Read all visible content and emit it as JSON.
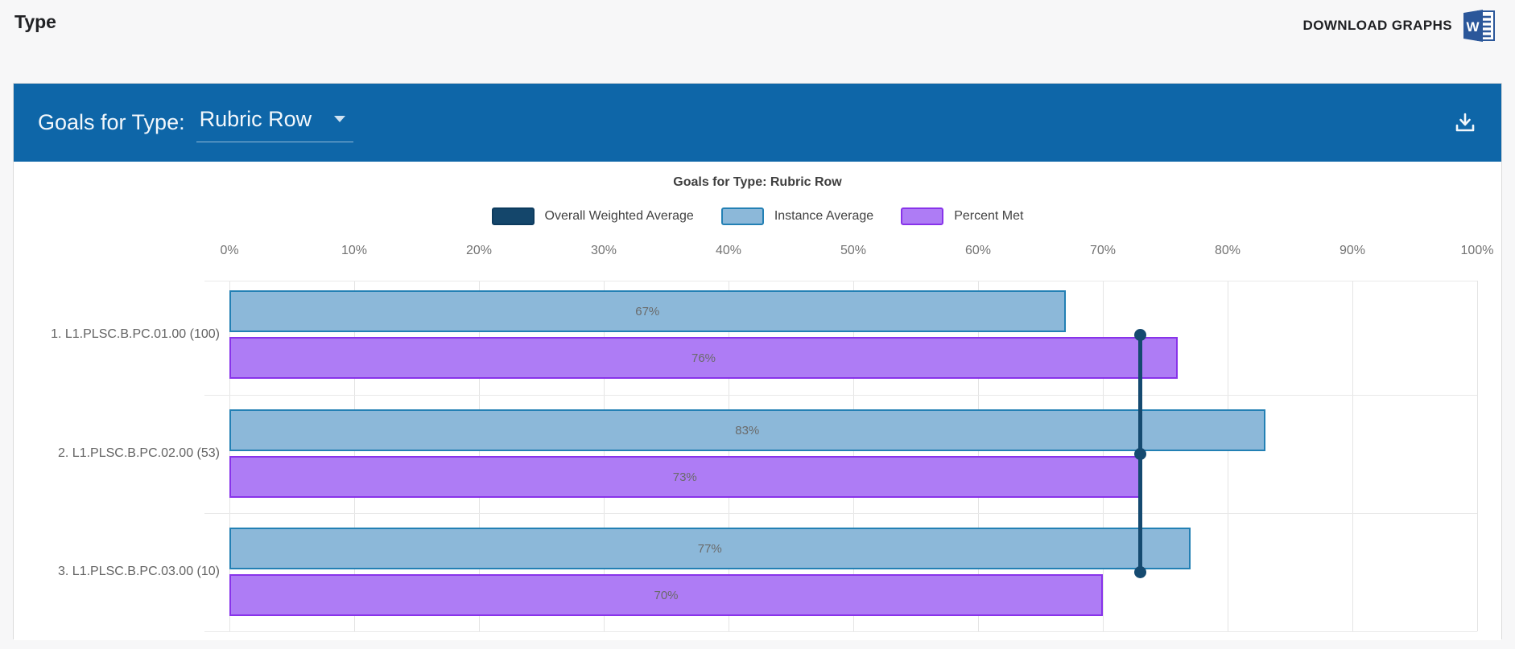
{
  "page": {
    "title": "Type"
  },
  "toolbar": {
    "download_label": "DOWNLOAD GRAPHS",
    "word_icon": "word-icon",
    "word_icon_color": "#2b579a"
  },
  "panel": {
    "header_label": "Goals for Type:",
    "selected_type": "Rubric Row",
    "download_icon": "download-icon",
    "header_color": "#0e66a8"
  },
  "chart_data": {
    "type": "bar",
    "orientation": "horizontal",
    "title": "Goals for Type: Rubric Row",
    "categories": [
      "1. L1.PLSC.B.PC.01.00 (100)",
      "2. L1.PLSC.B.PC.02.00 (53)",
      "3. L1.PLSC.B.PC.03.00 (10)"
    ],
    "series": [
      {
        "name": "Overall Weighted Average",
        "type": "line",
        "color": "#14466b",
        "border": "#0d3b5e",
        "values": [
          73,
          73,
          73
        ]
      },
      {
        "name": "Instance Average",
        "type": "bar",
        "color": "#8cb8d9",
        "border": "#2380b4",
        "values": [
          67,
          83,
          77
        ]
      },
      {
        "name": "Percent Met",
        "type": "bar",
        "color": "#ae7cf5",
        "border": "#8833ea",
        "values": [
          76,
          73,
          70
        ]
      }
    ],
    "value_labels": [
      "67%",
      "83%",
      "77%",
      "76%",
      "73%",
      "70%"
    ],
    "xlim": [
      0,
      100
    ],
    "x_ticks": [
      "0%",
      "10%",
      "20%",
      "30%",
      "40%",
      "50%",
      "60%",
      "70%",
      "80%",
      "90%",
      "100%"
    ],
    "grid": true,
    "legend_position": "top"
  }
}
